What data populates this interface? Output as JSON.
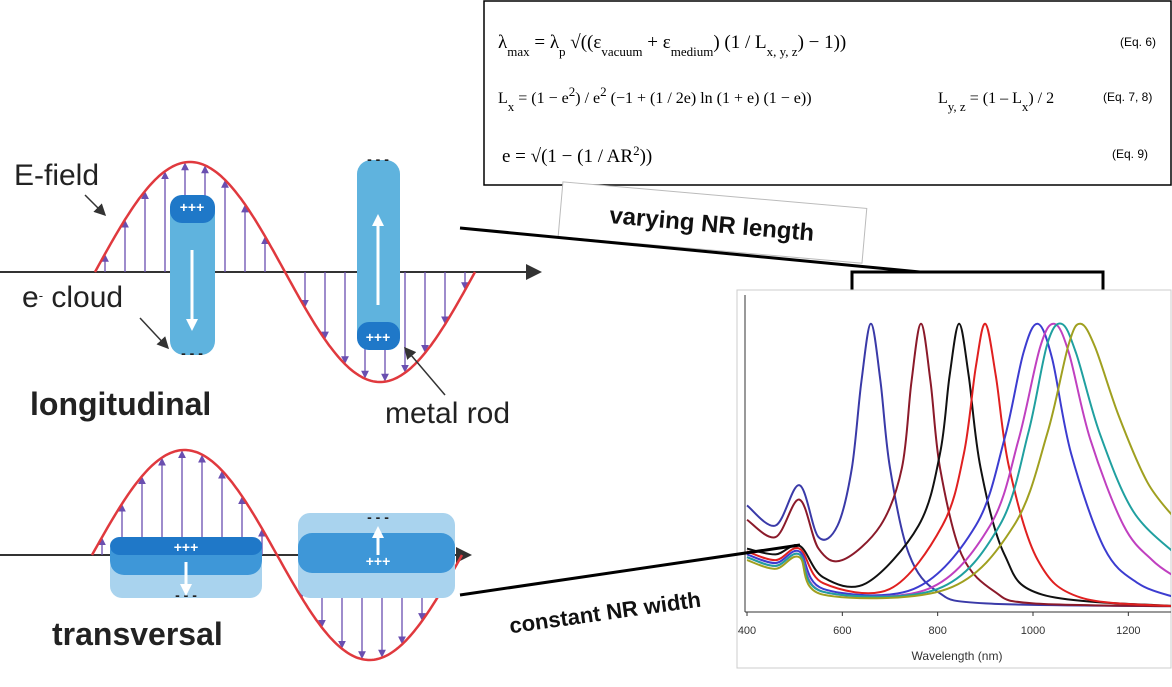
{
  "equations": [
    {
      "parts": [
        "λ",
        "max",
        " = λ",
        "p",
        " √((ε",
        "vacuum",
        " + ε",
        "medium",
        ") (1 / L",
        "x, y, z",
        ") − 1))"
      ],
      "label": "(Eq. 6)"
    },
    {
      "parts": [
        "L",
        "x",
        " = (1 − e",
        "2",
        ") / e",
        "2",
        " (−1 + (1 / 2e) ln (1 + e) (1 − e))",
        "L",
        "y, z",
        " = (1 – L",
        "x",
        ") / 2"
      ],
      "label": "(Eq. 7, 8)"
    },
    {
      "parts": [
        "e = √(1 − (1 / AR",
        "2",
        "))"
      ],
      "label": "(Eq. 9)"
    }
  ],
  "labels": {
    "e_field": "E-field",
    "e_cloud": [
      "e",
      "-",
      " cloud"
    ],
    "longitudinal": "longitudinal",
    "metal_rod": "metal rod",
    "transversal": "transversal",
    "plus": "+++",
    "minus": "- - -",
    "varying": "varying NR length",
    "constant": "constant NR width"
  },
  "chart_data": {
    "type": "line",
    "x_label": "Wavelength (nm)",
    "xlim": [
      400,
      1300
    ],
    "xticks": [
      400,
      600,
      800,
      1000,
      1200
    ],
    "ylim": [
      0,
      1.1
    ],
    "series": [
      {
        "color": "#3a3aa8",
        "x": [
          400,
          460,
          510,
          550,
          590,
          620,
          640,
          660,
          680,
          700,
          740,
          800,
          900,
          1300
        ],
        "values": [
          0.37,
          0.3,
          0.44,
          0.26,
          0.3,
          0.5,
          0.8,
          1.0,
          0.8,
          0.5,
          0.2,
          0.07,
          0.03,
          0.02
        ]
      },
      {
        "color": "#8b1a2a",
        "x": [
          400,
          460,
          510,
          550,
          600,
          680,
          725,
          745,
          765,
          785,
          805,
          850,
          920,
          1000,
          1300
        ],
        "values": [
          0.32,
          0.26,
          0.39,
          0.22,
          0.18,
          0.3,
          0.5,
          0.8,
          1.0,
          0.8,
          0.5,
          0.2,
          0.07,
          0.03,
          0.02
        ]
      },
      {
        "color": "#111111",
        "x": [
          400,
          460,
          510,
          560,
          650,
          760,
          805,
          825,
          845,
          865,
          890,
          940,
          1020,
          1300
        ],
        "values": [
          0.22,
          0.2,
          0.23,
          0.12,
          0.1,
          0.3,
          0.55,
          0.82,
          1.0,
          0.82,
          0.5,
          0.2,
          0.06,
          0.02
        ]
      },
      {
        "color": "#e02020",
        "x": [
          400,
          460,
          510,
          560,
          700,
          810,
          855,
          880,
          900,
          922,
          950,
          1010,
          1100,
          1300
        ],
        "values": [
          0.21,
          0.18,
          0.22,
          0.1,
          0.08,
          0.3,
          0.55,
          0.85,
          1.0,
          0.82,
          0.5,
          0.18,
          0.05,
          0.02
        ]
      },
      {
        "color": "#3c3cd0",
        "x": [
          400,
          460,
          510,
          560,
          750,
          880,
          940,
          980,
          1010,
          1040,
          1080,
          1150,
          1220,
          1300
        ],
        "values": [
          0.2,
          0.17,
          0.21,
          0.08,
          0.08,
          0.3,
          0.6,
          0.9,
          1.0,
          0.88,
          0.55,
          0.22,
          0.1,
          0.05
        ]
      },
      {
        "color": "#c040c0",
        "x": [
          400,
          460,
          510,
          560,
          780,
          910,
          970,
          1015,
          1045,
          1075,
          1120,
          1190,
          1250,
          1300
        ],
        "values": [
          0.19,
          0.16,
          0.2,
          0.07,
          0.08,
          0.3,
          0.6,
          0.92,
          1.0,
          0.9,
          0.6,
          0.3,
          0.18,
          0.12
        ]
      },
      {
        "color": "#20a0a0",
        "x": [
          400,
          460,
          510,
          560,
          800,
          930,
          990,
          1030,
          1060,
          1090,
          1140,
          1210,
          1300
        ],
        "values": [
          0.19,
          0.16,
          0.2,
          0.07,
          0.08,
          0.3,
          0.62,
          0.93,
          1.0,
          0.9,
          0.62,
          0.35,
          0.2
        ]
      },
      {
        "color": "#a0a020",
        "x": [
          400,
          460,
          510,
          560,
          820,
          960,
          1030,
          1075,
          1100,
          1130,
          1180,
          1240,
          1300
        ],
        "values": [
          0.18,
          0.15,
          0.19,
          0.06,
          0.08,
          0.3,
          0.62,
          0.93,
          1.0,
          0.92,
          0.68,
          0.45,
          0.32
        ]
      }
    ]
  }
}
